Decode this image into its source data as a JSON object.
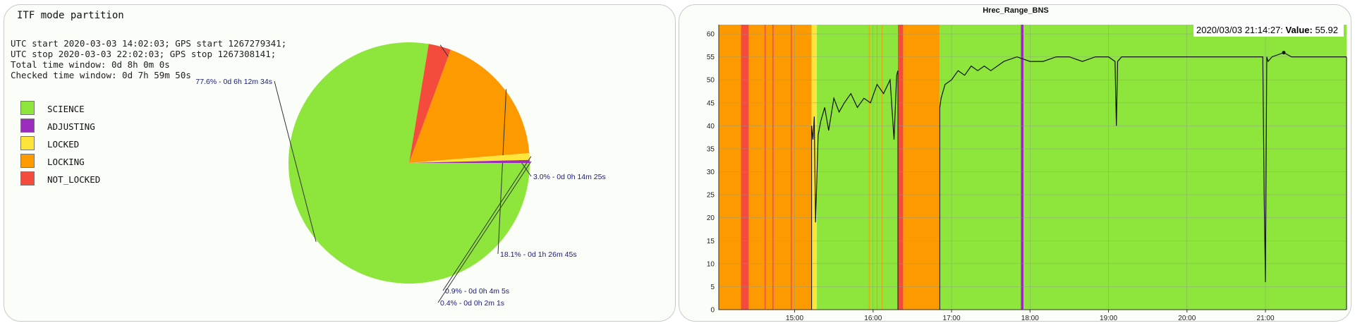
{
  "pie_panel": {
    "title": "ITF mode partition",
    "info_lines": [
      "UTC start 2020-03-03 14:02:03; GPS start 1267279341;",
      "UTC stop 2020-03-03 22:02:03; GPS stop 1267308141;",
      "Total time window: 0d 8h 0m 0s",
      "Checked time window: 0d 7h 59m 50s"
    ]
  },
  "timeseries_panel": {
    "title": "Hrec_Range_BNS",
    "tooltip": {
      "timestamp": "2020/03/03 21:14:27:",
      "value_label": "Value:",
      "value": "55.92"
    }
  },
  "chart_data": [
    {
      "type": "pie",
      "legend_placement": "left",
      "slices": [
        {
          "name": "SCIENCE",
          "percent": 77.6,
          "label": "77.6% - 0d 6h 12m 34s",
          "color": "#8ee63c"
        },
        {
          "name": "NOT_LOCKED",
          "percent": 3.0,
          "label": "3.0% - 0d 0h 14m 25s",
          "color": "#f44b3c"
        },
        {
          "name": "LOCKING",
          "percent": 18.1,
          "label": "18.1% - 0d 1h 26m 45s",
          "color": "#fd9a00"
        },
        {
          "name": "LOCKED",
          "percent": 0.9,
          "label": "0.9% - 0d 0h 4m 5s",
          "color": "#fde53c"
        },
        {
          "name": "ADJUSTING",
          "percent": 0.4,
          "label": "0.4% - 0d 0h 2m 1s",
          "color": "#9b2cbe"
        }
      ],
      "legend": [
        {
          "name": "SCIENCE",
          "color": "#8ee63c"
        },
        {
          "name": "ADJUSTING",
          "color": "#9b2cbe"
        },
        {
          "name": "LOCKED",
          "color": "#fde53c"
        },
        {
          "name": "LOCKING",
          "color": "#fd9a00"
        },
        {
          "name": "NOT_LOCKED",
          "color": "#f44b3c"
        }
      ]
    },
    {
      "type": "line",
      "title": "Hrec_Range_BNS",
      "grid": true,
      "x_range": [
        "14:02",
        "22:02"
      ],
      "ylim": [
        0,
        62
      ],
      "yticks": [
        0,
        5,
        10,
        15,
        20,
        25,
        30,
        35,
        40,
        45,
        50,
        55,
        60
      ],
      "xticks": [
        "15:00",
        "16:00",
        "17:00",
        "18:00",
        "19:00",
        "20:00",
        "21:00"
      ],
      "background_bands": [
        {
          "start": "14:02",
          "end": "14:19",
          "state": "LOCKING",
          "color": "#fd9a00"
        },
        {
          "start": "14:19",
          "end": "14:25",
          "state": "NOT_LOCKED",
          "color": "#f44b3c"
        },
        {
          "start": "14:25",
          "end": "14:37",
          "state": "LOCKING",
          "color": "#fd9a00"
        },
        {
          "start": "14:37",
          "end": "14:38",
          "state": "NOT_LOCKED",
          "color": "#f44b3c"
        },
        {
          "start": "14:38",
          "end": "14:43",
          "state": "LOCKING",
          "color": "#fd9a00"
        },
        {
          "start": "14:43",
          "end": "14:44",
          "state": "NOT_LOCKED",
          "color": "#f44b3c"
        },
        {
          "start": "14:44",
          "end": "14:57",
          "state": "LOCKING",
          "color": "#fd9a00"
        },
        {
          "start": "14:57",
          "end": "14:58",
          "state": "NOT_LOCKED",
          "color": "#f44b3c"
        },
        {
          "start": "14:58",
          "end": "15:13",
          "state": "LOCKING",
          "color": "#fd9a00"
        },
        {
          "start": "15:13",
          "end": "15:17",
          "state": "LOCKED",
          "color": "#fde53c"
        },
        {
          "start": "15:17",
          "end": "16:19",
          "state": "SCIENCE",
          "color": "#8ee63c"
        },
        {
          "start": "16:19",
          "end": "16:23",
          "state": "NOT_LOCKED",
          "color": "#f44b3c"
        },
        {
          "start": "16:23",
          "end": "16:51",
          "state": "LOCKING",
          "color": "#fd9a00"
        },
        {
          "start": "16:51",
          "end": "17:53",
          "state": "SCIENCE",
          "color": "#8ee63c"
        },
        {
          "start": "17:53",
          "end": "17:55",
          "state": "ADJUSTING",
          "color": "#9b2cbe"
        },
        {
          "start": "17:55",
          "end": "22:02",
          "state": "SCIENCE",
          "color": "#8ee63c"
        }
      ],
      "thin_lines": [
        {
          "time": "15:57",
          "color": "#fd9a00"
        },
        {
          "time": "16:03",
          "color": "#fd9a00"
        },
        {
          "time": "16:07",
          "color": "#fd9a00"
        }
      ],
      "series": [
        {
          "x": [
            "15:13",
            "15:14",
            "15:15",
            "15:16",
            "15:18",
            "15:20",
            "15:23",
            "15:26",
            "15:30",
            "15:34",
            "15:38",
            "15:43",
            "15:48",
            "15:53",
            "15:58",
            "16:03",
            "16:08",
            "16:13",
            "16:16",
            "16:18",
            "16:19",
            "16:51",
            "16:52",
            "16:55",
            "17:00",
            "17:05",
            "17:10",
            "17:15",
            "17:20",
            "17:25",
            "17:30",
            "17:40",
            "17:50",
            "18:00",
            "18:10",
            "18:20",
            "18:30",
            "18:40",
            "18:50",
            "19:00",
            "19:05",
            "19:06",
            "19:07",
            "19:10",
            "19:20",
            "19:30",
            "19:40",
            "19:50",
            "20:00",
            "20:10",
            "20:20",
            "20:30",
            "20:40",
            "20:50",
            "20:58",
            "20:59",
            "21:00",
            "21:01",
            "21:02",
            "21:05",
            "21:14",
            "21:20",
            "21:30",
            "21:40",
            "21:50",
            "22:02"
          ],
          "y": [
            40,
            37,
            42,
            19,
            38,
            41,
            44,
            39,
            46,
            43,
            45,
            47,
            44,
            46,
            45,
            49,
            47,
            50,
            37,
            51,
            52,
            44,
            46,
            49,
            50,
            52,
            51,
            53,
            52,
            53,
            52,
            54,
            55,
            54,
            54,
            55,
            55,
            54,
            55,
            55,
            54,
            40,
            54,
            55,
            55,
            55,
            55,
            55,
            55,
            55,
            55,
            55,
            55,
            55,
            55,
            25,
            6,
            55,
            54,
            55,
            55.92,
            55,
            55,
            55,
            55,
            55
          ]
        }
      ]
    }
  ]
}
